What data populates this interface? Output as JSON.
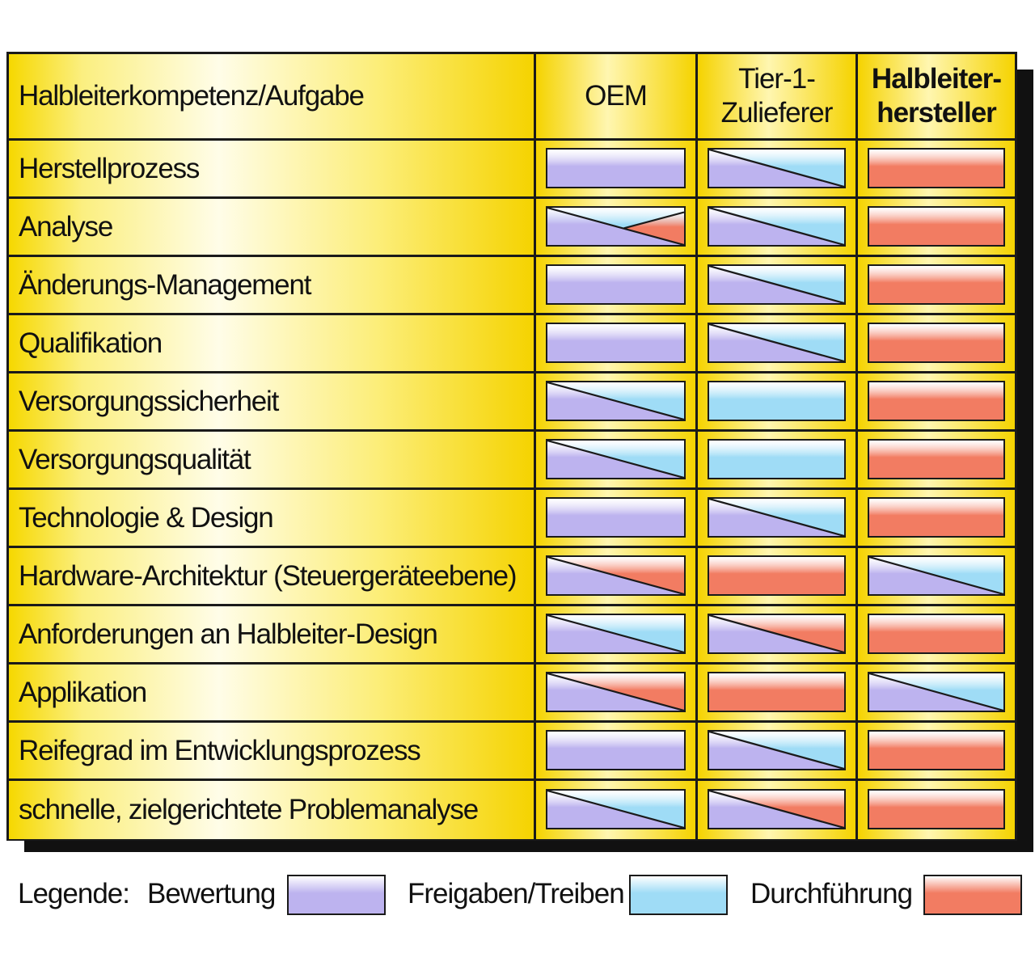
{
  "header": {
    "task": "Halbleiterkompetenz/Aufgabe",
    "oem": "OEM",
    "tier1_line1": "Tier-1-",
    "tier1_line2": "Zulieferer",
    "semi_line1": "Halbleiter-",
    "semi_line2": "hersteller"
  },
  "colors": {
    "bewertung": "#bdb3ef",
    "freigaben": "#9fdcf6",
    "durchfuehrung": "#f27c62",
    "table_yellow": "#f5d400"
  },
  "rows": [
    {
      "label": "Herstellprozess",
      "oem": "B",
      "tier1": "B/F",
      "semi": "D"
    },
    {
      "label": "Analyse",
      "oem": "B/F+D",
      "tier1": "B/F",
      "semi": "D"
    },
    {
      "label": "Änderungs-Management",
      "oem": "B",
      "tier1": "B/F",
      "semi": "D"
    },
    {
      "label": "Qualifikation",
      "oem": "B",
      "tier1": "B/F",
      "semi": "D"
    },
    {
      "label": "Versorgungssicherheit",
      "oem": "B/F",
      "tier1": "F",
      "semi": "D"
    },
    {
      "label": "Versorgungsqualität",
      "oem": "B/F",
      "tier1": "F",
      "semi": "D"
    },
    {
      "label": "Technologie & Design",
      "oem": "B",
      "tier1": "B/F",
      "semi": "D"
    },
    {
      "label": "Hardware-Architektur (Steuergeräteebene)",
      "oem": "B/D",
      "tier1": "D",
      "semi": "B/F"
    },
    {
      "label": "Anforderungen an Halbleiter-Design",
      "oem": "B/F",
      "tier1": "B/D",
      "semi": "D"
    },
    {
      "label": "Applikation",
      "oem": "B/D",
      "tier1": "D",
      "semi": "B/F"
    },
    {
      "label": "Reifegrad im Entwicklungsprozess",
      "oem": "B",
      "tier1": "B/F",
      "semi": "D"
    },
    {
      "label": "schnelle, zielgerichtete Problemanalyse",
      "oem": "B/F",
      "tier1": "B/D",
      "semi": "D"
    }
  ],
  "legend": {
    "title": "Legende:",
    "bewertung": "Bewertung",
    "freigaben": "Freigaben/Treiben",
    "durchfuehrung": "Durchführung"
  }
}
